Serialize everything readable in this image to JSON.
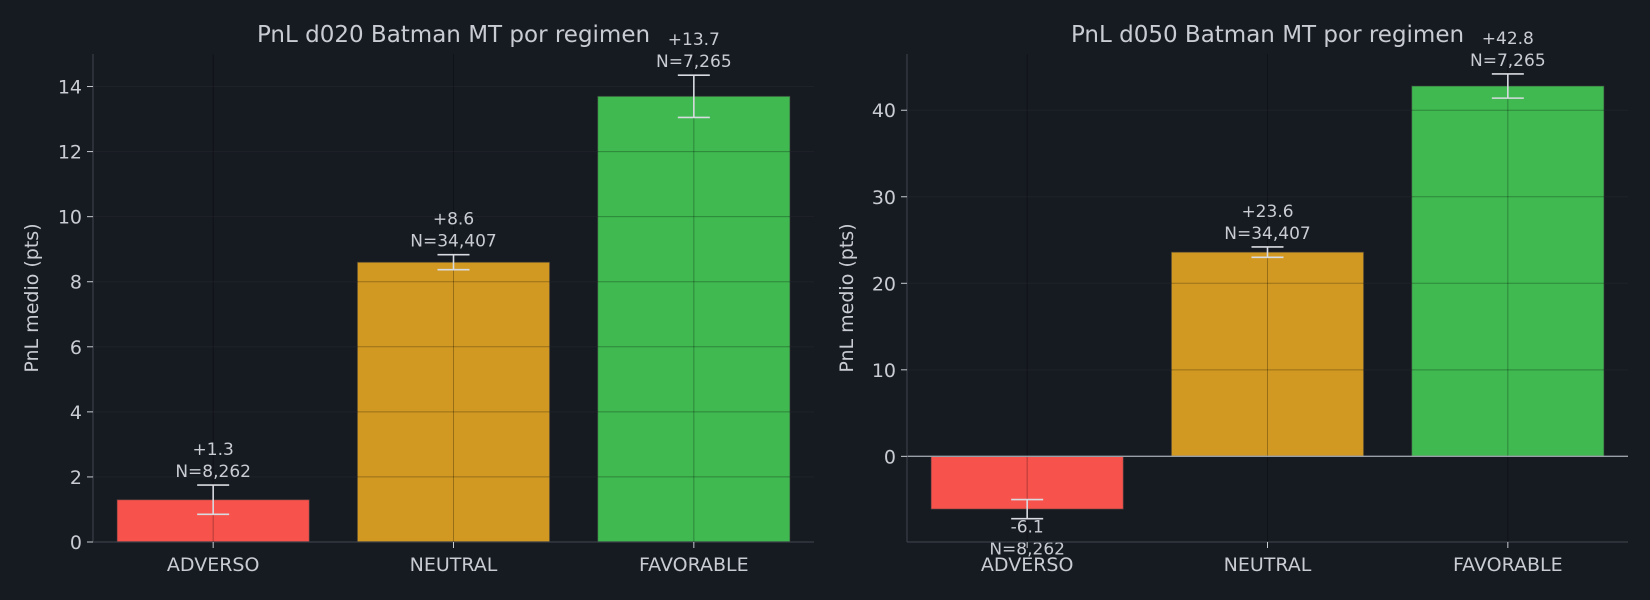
{
  "theme": {
    "background": "#161a21",
    "axis_color": "#3a3f48",
    "grid_color": "#2a2f37",
    "text_color": "#c9ccd2",
    "errorbar_color": "#d8dbe0",
    "zero_line_color": "#9aa0a8",
    "bar_colors": {
      "ADVERSO": "#f7524c",
      "NEUTRAL": "#d29922",
      "FAVORABLE": "#3fb950"
    }
  },
  "chart_data": [
    {
      "type": "bar",
      "title": "PnL d020 Batman MT por regimen",
      "ylabel": "PnL medio (pts)",
      "xlabel": "",
      "categories": [
        "ADVERSO",
        "NEUTRAL",
        "FAVORABLE"
      ],
      "values": [
        1.3,
        8.6,
        13.7
      ],
      "errors": [
        0.45,
        0.23,
        0.65
      ],
      "value_labels": [
        "+1.3",
        "+8.6",
        "+13.7"
      ],
      "count_labels": [
        "N=8,262",
        "N=34,407",
        "N=7,265"
      ],
      "ylim": [
        0,
        15
      ],
      "yticks": [
        0,
        2,
        4,
        6,
        8,
        10,
        12,
        14
      ],
      "grid": true
    },
    {
      "type": "bar",
      "title": "PnL d050 Batman MT por regimen",
      "ylabel": "PnL medio (pts)",
      "xlabel": "",
      "categories": [
        "ADVERSO",
        "NEUTRAL",
        "FAVORABLE"
      ],
      "values": [
        -6.1,
        23.6,
        42.8
      ],
      "errors": [
        1.1,
        0.6,
        1.4
      ],
      "value_labels": [
        "-6.1",
        "+23.6",
        "+42.8"
      ],
      "count_labels": [
        "N=8,262",
        "N=34,407",
        "N=7,265"
      ],
      "ylim": [
        -9.9,
        46.5
      ],
      "yticks": [
        0,
        10,
        20,
        30,
        40
      ],
      "zero_line": true,
      "grid": true
    }
  ]
}
